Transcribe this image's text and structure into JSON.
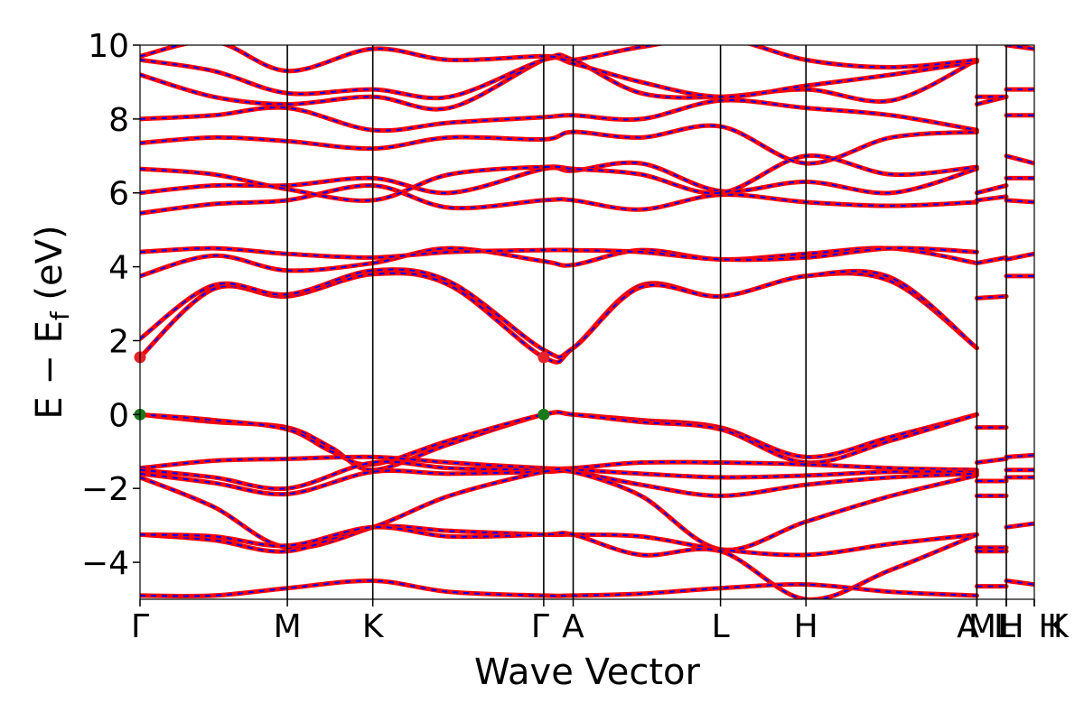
{
  "chart_data": {
    "type": "line",
    "xlabel": "Wave Vector",
    "ylabel_parts": [
      "E − E",
      "f",
      " (eV)"
    ],
    "ylim": [
      -5,
      10
    ],
    "yticks": [
      -4,
      -2,
      0,
      2,
      4,
      6,
      8,
      10
    ],
    "ytick_labels": [
      "−4",
      "−2",
      "0",
      "2",
      "4",
      "6",
      "8",
      "10"
    ],
    "high_symmetry_points": [
      {
        "label": "Γ",
        "k": 0.0
      },
      {
        "label": "M",
        "k": 1.0
      },
      {
        "label": "K",
        "k": 1.58
      },
      {
        "label": "Γ",
        "k": 2.74
      },
      {
        "label": "A",
        "k": 2.94
      },
      {
        "label": "L",
        "k": 3.94
      },
      {
        "label": "H",
        "k": 4.52
      },
      {
        "label": "A",
        "k": 5.68
      },
      {
        "label": "M",
        "k": 5.68
      },
      {
        "label": "L",
        "k": 5.88
      },
      {
        "label": "L",
        "k": 5.88
      },
      {
        "label": "H",
        "k": 5.88
      },
      {
        "label": "H",
        "k": 6.07
      },
      {
        "label": "K",
        "k": 6.07
      }
    ],
    "vertical_lines_k": [
      1.0,
      1.58,
      2.74,
      2.94,
      3.94,
      4.52,
      5.68,
      5.88
    ],
    "x_range": [
      0,
      6.07
    ],
    "series_colors": {
      "band_outer": "#ff0000",
      "band_inner": "#0000ff"
    },
    "markers": [
      {
        "k": 0.0,
        "e": 1.55,
        "color": "#e8222b"
      },
      {
        "k": 2.74,
        "e": 1.55,
        "color": "#e8222b"
      },
      {
        "k": 0.0,
        "e": 0.0,
        "color": "#1a7a1a"
      },
      {
        "k": 2.74,
        "e": 0.0,
        "color": "#1a7a1a"
      }
    ],
    "bands": [
      {
        "k": [
          0,
          0.5,
          1.0,
          1.3,
          1.58,
          2.1,
          2.74,
          2.94,
          3.4,
          3.94,
          4.52,
          5.1,
          5.68
        ],
        "e": [
          0.0,
          -0.2,
          -0.35,
          -0.9,
          -1.5,
          -0.8,
          0.0,
          0.0,
          -0.15,
          -0.35,
          -1.15,
          -0.6,
          0.0
        ]
      },
      {
        "k": [
          0,
          0.5,
          1.0,
          1.3,
          1.58,
          2.1,
          2.74,
          2.94,
          3.4,
          3.94,
          4.52,
          5.1,
          5.68
        ],
        "e": [
          0.0,
          -0.15,
          -0.4,
          -1.0,
          -1.35,
          -0.7,
          0.0,
          0.0,
          -0.2,
          -0.4,
          -1.3,
          -0.7,
          0.0
        ]
      },
      {
        "k": [
          0,
          0.5,
          1.0,
          1.58,
          2.1,
          2.74,
          2.94,
          3.4,
          3.94,
          4.52,
          5.1,
          5.68
        ],
        "e": [
          -1.45,
          -1.25,
          -1.2,
          -1.15,
          -1.3,
          -1.45,
          -1.45,
          -1.3,
          -1.3,
          -1.35,
          -1.45,
          -1.5
        ]
      },
      {
        "k": [
          0,
          0.5,
          1.0,
          1.58,
          2.1,
          2.74,
          2.94,
          3.4,
          3.94,
          4.52,
          5.1,
          5.68
        ],
        "e": [
          -1.5,
          -1.7,
          -2.0,
          -1.3,
          -1.45,
          -1.5,
          -1.5,
          -1.6,
          -1.7,
          -1.65,
          -1.55,
          -1.55
        ]
      },
      {
        "k": [
          0,
          0.5,
          1.0,
          1.58,
          2.1,
          2.74,
          2.94,
          3.4,
          3.94,
          4.52,
          5.1,
          5.68
        ],
        "e": [
          -1.6,
          -1.85,
          -2.15,
          -1.55,
          -1.6,
          -1.55,
          -1.55,
          -1.9,
          -2.2,
          -1.9,
          -1.7,
          -1.6
        ]
      },
      {
        "k": [
          0,
          0.5,
          1.0,
          1.58,
          2.1,
          2.74,
          2.94,
          3.4,
          3.94,
          4.52,
          5.1,
          5.68
        ],
        "e": [
          -1.7,
          -2.5,
          -3.6,
          -3.05,
          -2.2,
          -1.55,
          -1.55,
          -2.2,
          -3.65,
          -2.9,
          -2.2,
          -1.65
        ]
      },
      {
        "k": [
          0,
          0.5,
          1.0,
          1.58,
          2.1,
          2.74,
          2.94,
          3.4,
          3.94,
          4.52,
          5.1,
          5.68
        ],
        "e": [
          -3.25,
          -3.4,
          -3.7,
          -3.05,
          -3.15,
          -3.25,
          -3.25,
          -3.3,
          -3.65,
          -3.8,
          -3.5,
          -3.25
        ]
      },
      {
        "k": [
          0,
          0.5,
          1.0,
          1.58,
          2.1,
          2.74,
          2.94,
          3.4,
          3.94,
          4.52,
          5.1,
          5.68
        ],
        "e": [
          -3.25,
          -3.3,
          -3.55,
          -3.05,
          -3.3,
          -3.25,
          -3.25,
          -3.8,
          -3.7,
          -5.0,
          -4.2,
          -3.25
        ]
      },
      {
        "k": [
          0,
          0.5,
          1.0,
          1.58,
          2.1,
          2.74,
          2.94,
          3.4,
          3.94,
          4.52,
          5.1,
          5.68
        ],
        "e": [
          -4.9,
          -4.9,
          -4.7,
          -4.5,
          -4.8,
          -4.9,
          -4.9,
          -4.85,
          -4.7,
          -4.6,
          -4.8,
          -4.9
        ]
      },
      {
        "k": [
          0,
          0.5,
          1.0,
          1.58,
          2.1,
          2.74,
          2.94,
          3.4,
          3.94,
          4.52,
          5.1,
          5.68
        ],
        "e": [
          1.55,
          3.4,
          3.2,
          3.8,
          3.5,
          1.55,
          1.8,
          3.5,
          3.2,
          3.75,
          3.6,
          1.8
        ]
      },
      {
        "k": [
          0,
          0.5,
          1.0,
          1.58,
          2.1,
          2.74,
          2.94,
          3.4,
          3.94,
          4.52,
          5.1,
          5.68
        ],
        "e": [
          2.05,
          3.5,
          3.25,
          3.9,
          3.6,
          1.75,
          1.8,
          3.45,
          3.2,
          3.75,
          3.7,
          1.8
        ]
      },
      {
        "k": [
          0,
          0.5,
          1.0,
          1.58,
          2.1,
          2.74,
          2.94,
          3.4,
          3.94,
          4.52,
          5.1,
          5.68
        ],
        "e": [
          3.75,
          4.3,
          3.9,
          4.1,
          4.5,
          4.15,
          4.05,
          4.45,
          4.2,
          4.35,
          4.5,
          4.1
        ]
      },
      {
        "k": [
          0,
          0.5,
          1.0,
          1.58,
          2.1,
          2.74,
          2.94,
          3.4,
          3.94,
          4.52,
          5.1,
          5.68
        ],
        "e": [
          4.4,
          4.5,
          4.35,
          4.25,
          4.4,
          4.45,
          4.45,
          4.4,
          4.2,
          4.25,
          4.5,
          4.4
        ]
      },
      {
        "k": [
          0,
          0.5,
          1.0,
          1.58,
          2.1,
          2.74,
          2.94,
          3.4,
          3.94,
          4.52,
          5.1,
          5.68
        ],
        "e": [
          5.45,
          5.7,
          5.8,
          6.2,
          5.6,
          5.8,
          5.8,
          5.55,
          5.95,
          5.75,
          5.65,
          5.75
        ]
      },
      {
        "k": [
          0,
          0.5,
          1.0,
          1.58,
          2.1,
          2.74,
          2.94,
          3.4,
          3.94,
          4.52,
          5.1,
          5.68
        ],
        "e": [
          6.0,
          6.2,
          6.2,
          6.4,
          6.0,
          6.65,
          6.6,
          6.8,
          6.05,
          6.3,
          6.0,
          6.65
        ]
      },
      {
        "k": [
          0,
          0.5,
          1.0,
          1.58,
          2.1,
          2.74,
          2.94,
          3.4,
          3.94,
          4.52,
          5.1,
          5.68
        ],
        "e": [
          6.65,
          6.5,
          6.1,
          5.8,
          6.5,
          6.7,
          6.65,
          6.5,
          6.0,
          7.0,
          6.5,
          6.7
        ]
      },
      {
        "k": [
          0,
          0.5,
          1.0,
          1.58,
          2.1,
          2.74,
          2.94,
          3.4,
          3.94,
          4.52,
          5.1,
          5.68
        ],
        "e": [
          7.35,
          7.5,
          7.4,
          7.2,
          7.5,
          7.45,
          7.65,
          7.5,
          7.8,
          6.8,
          7.5,
          7.65
        ]
      },
      {
        "k": [
          0,
          0.5,
          1.0,
          1.58,
          2.1,
          2.74,
          2.94,
          3.4,
          3.94,
          4.52,
          5.1,
          5.68
        ],
        "e": [
          8.0,
          8.1,
          8.3,
          7.7,
          7.9,
          8.05,
          8.1,
          8.0,
          8.5,
          8.3,
          8.1,
          7.7
        ]
      },
      {
        "k": [
          0,
          0.5,
          1.0,
          1.58,
          2.1,
          2.74,
          2.94,
          3.4,
          3.94,
          4.52,
          5.1,
          5.68
        ],
        "e": [
          9.2,
          8.6,
          8.4,
          8.6,
          8.3,
          9.6,
          9.6,
          8.7,
          8.6,
          8.8,
          8.5,
          9.6
        ]
      },
      {
        "k": [
          0,
          0.5,
          1.0,
          1.58,
          2.1,
          2.74,
          2.94,
          3.4,
          3.94,
          4.52,
          5.1,
          5.68
        ],
        "e": [
          9.6,
          9.3,
          8.7,
          8.8,
          8.6,
          9.6,
          9.5,
          9.0,
          8.6,
          8.9,
          9.2,
          9.55
        ]
      },
      {
        "k": [
          0,
          0.5,
          1.0,
          1.58,
          2.1,
          2.74,
          2.94,
          3.4,
          3.94,
          4.52,
          5.1,
          5.68
        ],
        "e": [
          9.7,
          10.1,
          9.3,
          9.9,
          9.6,
          9.7,
          9.6,
          9.95,
          10.2,
          9.6,
          9.4,
          9.6
        ]
      }
    ],
    "segments": [
      {
        "k": [
          5.68,
          5.88
        ],
        "e": [
          -0.35,
          -0.35
        ]
      },
      {
        "k": [
          5.68,
          5.88
        ],
        "e": [
          -1.3,
          -1.2
        ]
      },
      {
        "k": [
          5.68,
          5.88
        ],
        "e": [
          -1.8,
          -1.8
        ]
      },
      {
        "k": [
          5.68,
          5.88
        ],
        "e": [
          -2.2,
          -2.2
        ]
      },
      {
        "k": [
          5.68,
          5.88
        ],
        "e": [
          -3.6,
          -3.6
        ]
      },
      {
        "k": [
          5.68,
          5.88
        ],
        "e": [
          -3.7,
          -3.7
        ]
      },
      {
        "k": [
          5.68,
          5.88
        ],
        "e": [
          -4.65,
          -4.65
        ]
      },
      {
        "k": [
          5.68,
          5.88
        ],
        "e": [
          3.15,
          3.2
        ]
      },
      {
        "k": [
          5.68,
          5.88
        ],
        "e": [
          4.1,
          4.25
        ]
      },
      {
        "k": [
          5.68,
          5.88
        ],
        "e": [
          5.8,
          5.9
        ]
      },
      {
        "k": [
          5.68,
          5.88
        ],
        "e": [
          6.0,
          6.2
        ]
      },
      {
        "k": [
          5.68,
          5.88
        ],
        "e": [
          8.4,
          8.6
        ]
      },
      {
        "k": [
          5.68,
          5.88
        ],
        "e": [
          8.6,
          8.6
        ]
      },
      {
        "k": [
          5.88,
          6.07
        ],
        "e": [
          -1.15,
          -1.1
        ]
      },
      {
        "k": [
          5.88,
          6.07
        ],
        "e": [
          -1.5,
          -1.5
        ]
      },
      {
        "k": [
          5.88,
          6.07
        ],
        "e": [
          -1.7,
          -1.7
        ]
      },
      {
        "k": [
          5.88,
          6.07
        ],
        "e": [
          -3.05,
          -2.95
        ]
      },
      {
        "k": [
          5.88,
          6.07
        ],
        "e": [
          -4.5,
          -4.6
        ]
      },
      {
        "k": [
          5.88,
          6.07
        ],
        "e": [
          4.2,
          4.35
        ]
      },
      {
        "k": [
          5.88,
          6.07
        ],
        "e": [
          3.75,
          3.75
        ]
      },
      {
        "k": [
          5.88,
          6.07
        ],
        "e": [
          5.8,
          5.75
        ]
      },
      {
        "k": [
          5.88,
          6.07
        ],
        "e": [
          6.4,
          6.4
        ]
      },
      {
        "k": [
          5.88,
          6.07
        ],
        "e": [
          7.0,
          6.8
        ]
      },
      {
        "k": [
          5.88,
          6.07
        ],
        "e": [
          8.1,
          8.1
        ]
      },
      {
        "k": [
          5.88,
          6.07
        ],
        "e": [
          8.8,
          8.8
        ]
      },
      {
        "k": [
          5.88,
          6.07
        ],
        "e": [
          10.0,
          9.9
        ]
      }
    ]
  }
}
